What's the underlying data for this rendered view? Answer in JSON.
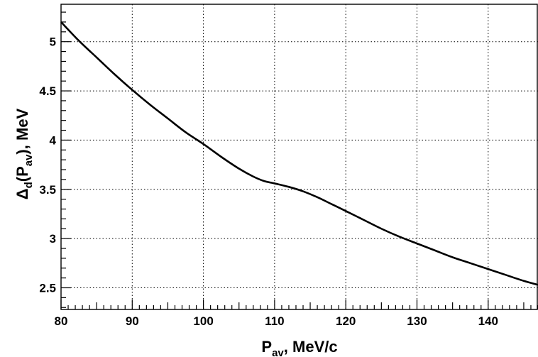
{
  "chart_data": {
    "type": "line",
    "title": "",
    "xlabel": {
      "main": "P",
      "sub": "av",
      "rest": ", MeV/c"
    },
    "ylabel": {
      "delta": "Δ",
      "sub1": "d",
      "open": "(P",
      "sub2": "av",
      "rest": "), MeV"
    },
    "xlim": [
      80,
      147
    ],
    "ylim": [
      2.28,
      5.38
    ],
    "x_ticks": [
      80,
      90,
      100,
      110,
      120,
      130,
      140
    ],
    "y_ticks": [
      2.5,
      3,
      3.5,
      4,
      4.5,
      5
    ],
    "x_tick_labels": [
      "80",
      "90",
      "100",
      "110",
      "120",
      "130",
      "140"
    ],
    "y_tick_labels": [
      "2.5",
      "3",
      "3.5",
      "4",
      "4.5",
      "5"
    ],
    "grid": true,
    "series": [
      {
        "x": [
          80,
          82.5,
          85,
          87.5,
          90,
          92.5,
          95,
          97.5,
          100,
          102.5,
          105,
          107,
          108.5,
          110,
          112,
          114,
          116,
          118,
          120,
          122.5,
          125,
          127.5,
          130,
          132.5,
          135,
          137.5,
          140,
          142.5,
          145,
          147
        ],
        "y": [
          5.2,
          5.01,
          4.84,
          4.67,
          4.51,
          4.36,
          4.22,
          4.08,
          3.96,
          3.83,
          3.71,
          3.63,
          3.585,
          3.56,
          3.525,
          3.48,
          3.42,
          3.35,
          3.28,
          3.19,
          3.1,
          3.02,
          2.95,
          2.88,
          2.81,
          2.75,
          2.69,
          2.63,
          2.57,
          2.53
        ],
        "color": "#000000"
      }
    ]
  }
}
